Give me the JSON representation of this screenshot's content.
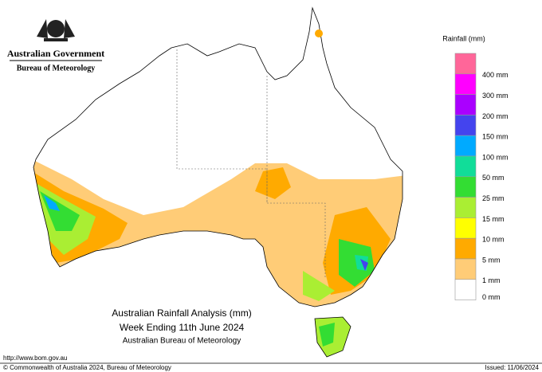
{
  "header": {
    "government": "Australian Government",
    "bureau": "Bureau of Meteorology"
  },
  "legend": {
    "title": "Rainfall (mm)",
    "colors": [
      "#ff6699",
      "#ff00ff",
      "#aa00ff",
      "#4444ee",
      "#00aaff",
      "#11dd99",
      "#33dd33",
      "#aaee33",
      "#ffff00",
      "#ffaa00",
      "#ffcc77",
      "#ffffff"
    ],
    "labels": [
      "400 mm",
      "300 mm",
      "200 mm",
      "150 mm",
      "100 mm",
      "50 mm",
      "25 mm",
      "15 mm",
      "10 mm",
      "5 mm",
      "1 mm",
      "0 mm"
    ]
  },
  "title": {
    "line1": "Australian Rainfall Analysis (mm)",
    "line2": "Week Ending 11th June 2024",
    "line3": "Australian Bureau of Meteorology"
  },
  "footer": {
    "url": "http://www.bom.gov.au",
    "copyright": "© Commonwealth of Australia 2024, Bureau of Meteorology",
    "issued": "Issued: 11/06/2024"
  }
}
